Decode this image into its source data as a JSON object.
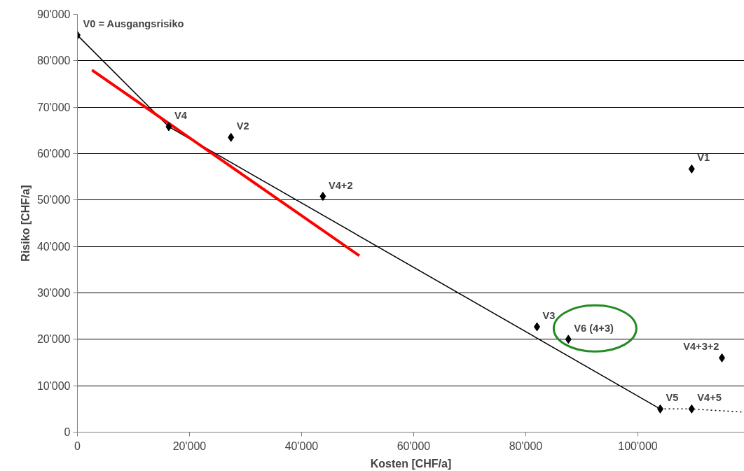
{
  "chart_data": {
    "type": "scatter",
    "xlabel": "Kosten [CHF/a]",
    "ylabel": "Risiko [CHF/a]",
    "xlim": [
      0,
      119000
    ],
    "ylim": [
      0,
      90000
    ],
    "xticks": [
      {
        "value": 0,
        "label": "0"
      },
      {
        "value": 20000,
        "label": "20'000"
      },
      {
        "value": 40000,
        "label": "40'000"
      },
      {
        "value": 60000,
        "label": "60'000"
      },
      {
        "value": 80000,
        "label": "80'000"
      },
      {
        "value": 100000,
        "label": "100'000"
      }
    ],
    "yticks": [
      0,
      {
        "value": 10000,
        "label": "10'000"
      },
      {
        "value": 20000,
        "label": "20'000"
      },
      {
        "value": 30000,
        "label": "30'000"
      },
      {
        "value": 40000,
        "label": "40'000"
      },
      {
        "value": 50000,
        "label": "50'000"
      },
      {
        "value": 60000,
        "label": "60'000"
      },
      {
        "value": 70000,
        "label": "70'000"
      },
      {
        "value": 80000,
        "label": "80'000"
      },
      {
        "value": 90000,
        "label": "90'000"
      }
    ],
    "grid": "y",
    "series": [
      {
        "type": "line",
        "marker": "none",
        "color": "#000000",
        "line_style": "solid",
        "x": [
          0,
          16300,
          104000
        ],
        "values": [
          85500,
          65800,
          5000
        ]
      },
      {
        "type": "line",
        "marker": "none",
        "color": "#000000",
        "line_style": "dotted",
        "x": [
          104000,
          109600,
          119000
        ],
        "values": [
          5000,
          5000,
          4300
        ]
      },
      {
        "type": "line",
        "marker": "none",
        "color": "#ff0000",
        "line_style": "solid",
        "x": [
          2600,
          50300
        ],
        "values": [
          78000,
          38000
        ]
      },
      {
        "marker": "diamond",
        "color": "#000000",
        "x": [
          0,
          16300,
          27400,
          43800,
          109600,
          82000,
          87600,
          115000,
          104000,
          109600
        ],
        "values": [
          85500,
          65800,
          63500,
          50800,
          56700,
          22700,
          20000,
          16000,
          5000,
          5000
        ]
      }
    ],
    "annotations": [
      {
        "text": "V0 = Ausgangsrisiko",
        "x": 0,
        "y": 85500
      },
      {
        "text": "V4",
        "x": 16300,
        "y": 65800
      },
      {
        "text": "V2",
        "x": 27400,
        "y": 63500
      },
      {
        "text": "V4+2",
        "x": 43800,
        "y": 50800
      },
      {
        "text": "V1",
        "x": 109600,
        "y": 56700
      },
      {
        "text": "V3",
        "x": 82000,
        "y": 22700
      },
      {
        "text": "V6 (4+3)",
        "x": 87600,
        "y": 20000
      },
      {
        "text": "V4+3+2",
        "x": 115000,
        "y": 16000
      },
      {
        "text": "V5",
        "x": 104000,
        "y": 5000
      },
      {
        "text": "V4+5",
        "x": 109600,
        "y": 5000
      }
    ]
  }
}
